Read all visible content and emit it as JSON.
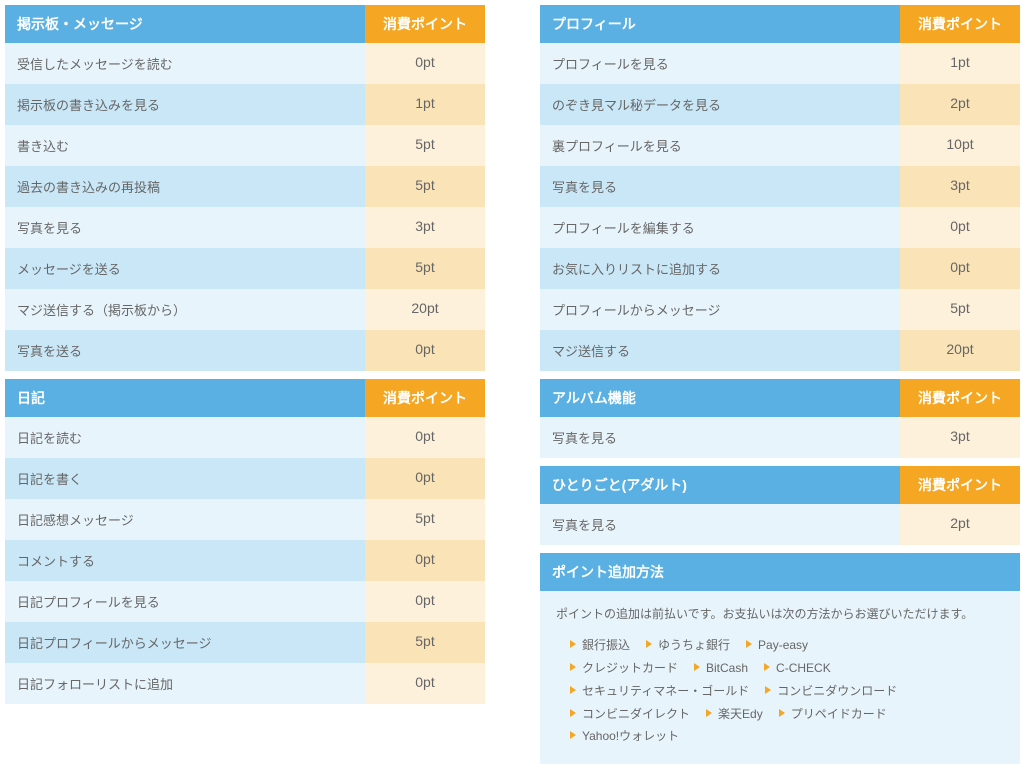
{
  "colors": {
    "blue_header": "#5ab0e2",
    "orange_header": "#f5a623",
    "blue_light": "#e8f4fb",
    "blue_med": "#c9e7f7",
    "orange_light": "#fdf1dc",
    "orange_med": "#fbe3b8",
    "arrow": "#f5a623",
    "text": "#666666"
  },
  "left": [
    {
      "title": "掲示板・メッセージ",
      "points_label": "消費ポイント",
      "rows": [
        {
          "label": "受信したメッセージを読む",
          "pt": "0pt"
        },
        {
          "label": "掲示板の書き込みを見る",
          "pt": "1pt"
        },
        {
          "label": "書き込む",
          "pt": "5pt"
        },
        {
          "label": "過去の書き込みの再投稿",
          "pt": "5pt"
        },
        {
          "label": "写真を見る",
          "pt": "3pt"
        },
        {
          "label": "メッセージを送る",
          "pt": "5pt"
        },
        {
          "label": "マジ送信する（掲示板から）",
          "pt": "20pt"
        },
        {
          "label": "写真を送る",
          "pt": "0pt"
        }
      ]
    },
    {
      "title": "日記",
      "points_label": "消費ポイント",
      "rows": [
        {
          "label": "日記を読む",
          "pt": "0pt"
        },
        {
          "label": "日記を書く",
          "pt": "0pt"
        },
        {
          "label": "日記感想メッセージ",
          "pt": "5pt"
        },
        {
          "label": "コメントする",
          "pt": "0pt"
        },
        {
          "label": "日記プロフィールを見る",
          "pt": "0pt"
        },
        {
          "label": "日記プロフィールからメッセージ",
          "pt": "5pt"
        },
        {
          "label": "日記フォローリストに追加",
          "pt": "0pt"
        }
      ]
    }
  ],
  "right": [
    {
      "title": "プロフィール",
      "points_label": "消費ポイント",
      "rows": [
        {
          "label": "プロフィールを見る",
          "pt": "1pt"
        },
        {
          "label": "のぞき見マル秘データを見る",
          "pt": "2pt"
        },
        {
          "label": "裏プロフィールを見る",
          "pt": "10pt"
        },
        {
          "label": "写真を見る",
          "pt": "3pt"
        },
        {
          "label": "プロフィールを編集する",
          "pt": "0pt"
        },
        {
          "label": "お気に入りリストに追加する",
          "pt": "0pt"
        },
        {
          "label": "プロフィールからメッセージ",
          "pt": "5pt"
        },
        {
          "label": "マジ送信する",
          "pt": "20pt"
        }
      ]
    },
    {
      "title": "アルバム機能",
      "points_label": "消費ポイント",
      "rows": [
        {
          "label": "写真を見る",
          "pt": "3pt"
        }
      ]
    },
    {
      "title": "ひとりごと(アダルト)",
      "points_label": "消費ポイント",
      "rows": [
        {
          "label": "写真を見る",
          "pt": "2pt"
        }
      ]
    }
  ],
  "info": {
    "title": "ポイント追加方法",
    "lead": "ポイントの追加は前払いです。お支払いは次の方法からお選びいただけます。",
    "methods": [
      "銀行振込",
      "ゆうちょ銀行",
      "Pay-easy",
      "クレジットカード",
      "BitCash",
      "C-CHECK",
      "セキュリティマネー・ゴールド",
      "コンビニダウンロード",
      "コンビニダイレクト",
      "楽天Edy",
      "プリペイドカード",
      "Yahoo!ウォレット"
    ]
  }
}
